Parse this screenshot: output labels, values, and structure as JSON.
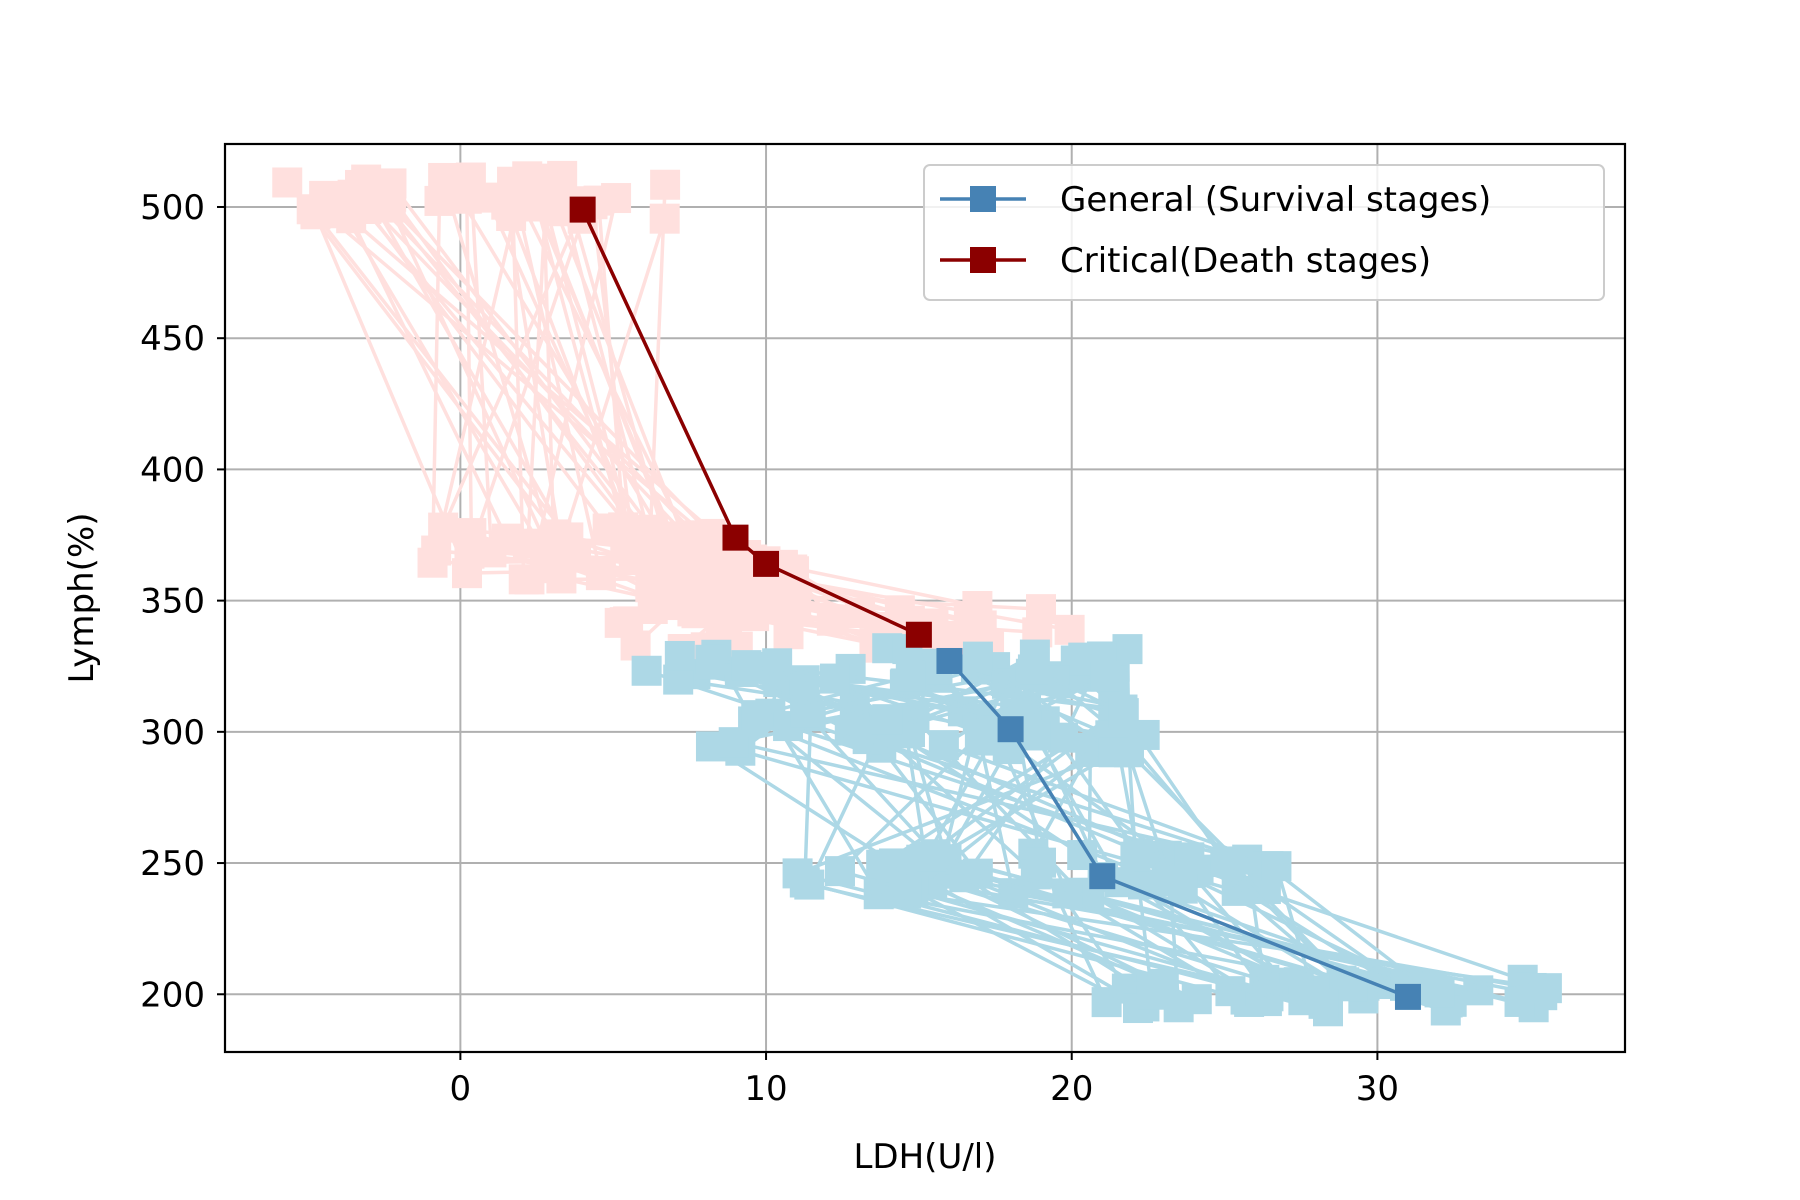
{
  "chart_data": {
    "type": "line",
    "title": "",
    "xlabel": "LDH(U/l)",
    "ylabel": "Lymph(%)",
    "xlim": [
      -7.7,
      38.1
    ],
    "ylim": [
      178,
      524
    ],
    "x_ticks": [
      0,
      10,
      20,
      30
    ],
    "y_ticks": [
      200,
      250,
      300,
      350,
      400,
      450,
      500
    ],
    "grid": true,
    "legend_position": "top-right",
    "series": [
      {
        "name": "General (Survival stages)",
        "color": "#4682b4",
        "marker": "square",
        "x": [
          16,
          18,
          21,
          31
        ],
        "y": [
          327,
          301,
          245,
          199
        ]
      },
      {
        "name": "Critical(Death stages)",
        "color": "#8b0000",
        "marker": "square",
        "x": [
          4,
          9,
          10,
          15
        ],
        "y": [
          499,
          374,
          364,
          337
        ]
      }
    ],
    "background_bundles": [
      {
        "group": "Critical(Death stages)",
        "color": "#ffe0de",
        "trajectory_count": 45,
        "stage_ranges": [
          {
            "x": [
              -6,
              7
            ],
            "y": [
              495,
              512
            ]
          },
          {
            "x": [
              -1,
              9
            ],
            "y": [
              358,
              378
            ]
          },
          {
            "x": [
              6,
              11
            ],
            "y": [
              345,
              370
            ]
          },
          {
            "x": [
              5,
              20
            ],
            "y": [
              330,
              348
            ]
          }
        ]
      },
      {
        "group": "General (Survival stages)",
        "color": "#add8e6",
        "trajectory_count": 45,
        "stage_ranges": [
          {
            "x": [
              6,
              22
            ],
            "y": [
              318,
              332
            ]
          },
          {
            "x": [
              8,
              23
            ],
            "y": [
              292,
              310
            ]
          },
          {
            "x": [
              11,
              27
            ],
            "y": [
              238,
              255
            ]
          },
          {
            "x": [
              21,
              36
            ],
            "y": [
              193,
              206
            ]
          }
        ]
      }
    ]
  }
}
